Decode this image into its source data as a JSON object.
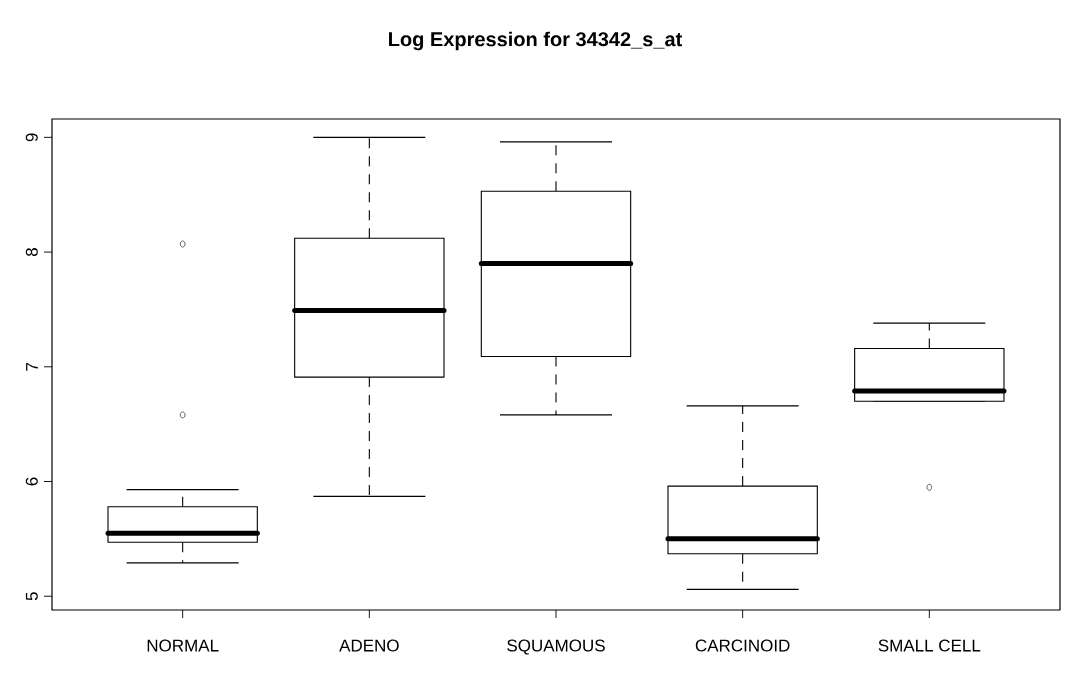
{
  "chart_data": {
    "type": "box",
    "title": "Log Expression for 34342_s_at",
    "categories": [
      "NORMAL",
      "ADENO",
      "SQUAMOUS",
      "CARCINOID",
      "SMALL CELL"
    ],
    "boxes": [
      {
        "low": 5.29,
        "q1": 5.47,
        "median": 5.55,
        "q3": 5.78,
        "high": 5.93,
        "outliers": [
          8.07,
          6.58
        ]
      },
      {
        "low": 5.87,
        "q1": 6.91,
        "median": 7.49,
        "q3": 8.12,
        "high": 9.0
      },
      {
        "low": 6.58,
        "q1": 7.09,
        "median": 7.9,
        "q3": 8.53,
        "high": 8.96
      },
      {
        "low": 5.06,
        "q1": 5.37,
        "median": 5.5,
        "q3": 5.96,
        "high": 6.66
      },
      {
        "low": 6.7,
        "q1": 6.7,
        "median": 6.79,
        "q3": 7.16,
        "high": 7.38,
        "outliers": [
          5.95
        ]
      }
    ],
    "ylim": [
      4.88,
      9.16
    ],
    "yticks": [
      5,
      6,
      7,
      8,
      9
    ]
  }
}
